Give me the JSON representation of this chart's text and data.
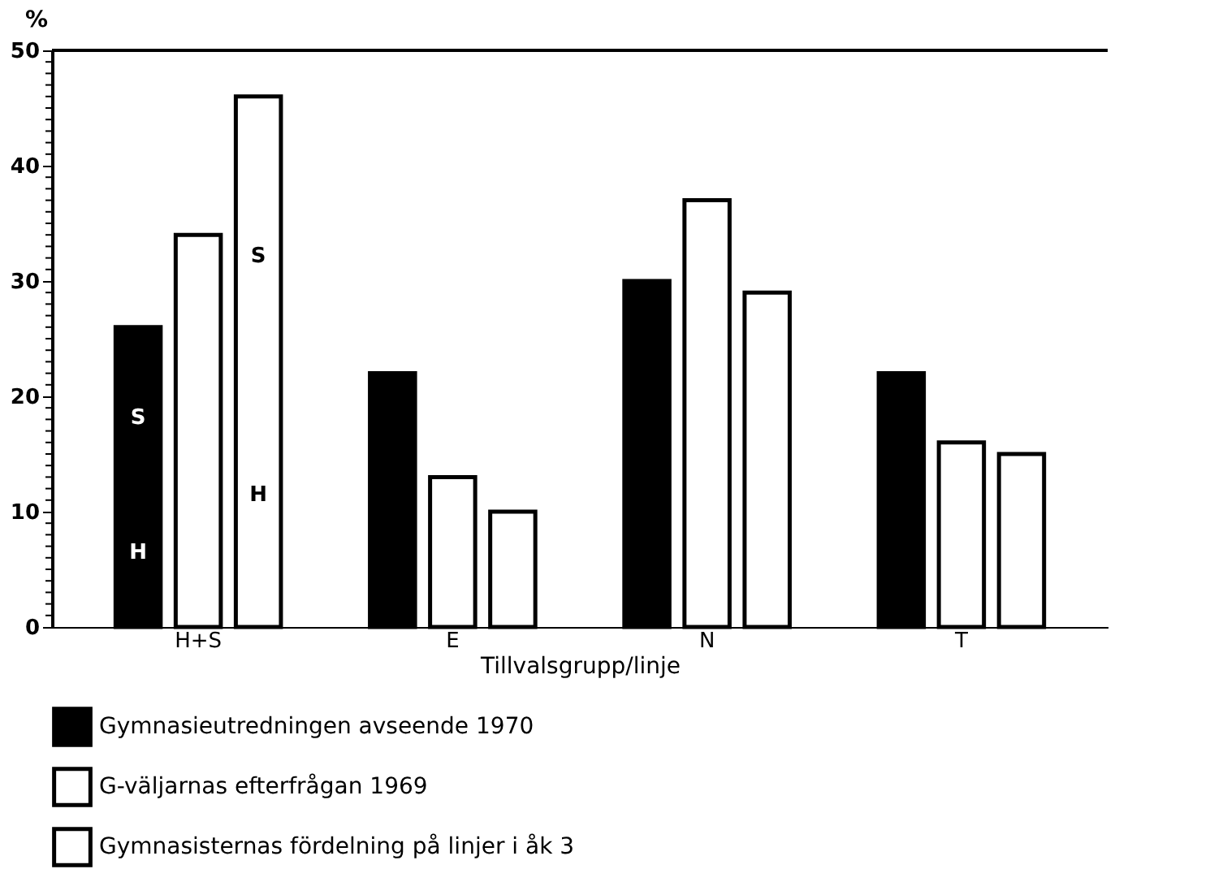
{
  "chart_data": {
    "type": "bar",
    "ylabel": "%",
    "xlabel": "Tillvalsgrupp/linje",
    "categories": [
      "H+S",
      "E",
      "N",
      "T"
    ],
    "series": [
      {
        "name": "Gymnasieutredningen avseende 1970",
        "color": "#000000",
        "values": [
          26,
          22,
          30,
          22
        ]
      },
      {
        "name": "G-väljarnas efterfrågan 1969",
        "color": "#ffffff",
        "values": [
          34,
          13,
          37,
          16
        ]
      },
      {
        "name": "Gymnasisternas fördelning på linjer i åk 3",
        "color": "#ffffff",
        "values": [
          46,
          10,
          29,
          15
        ]
      }
    ],
    "ylim": [
      0,
      50
    ],
    "yticks": [
      0,
      10,
      20,
      30,
      40,
      50,
      {
        "value": 1,
        "label": null
      },
      {
        "value": 2,
        "label": null
      },
      {
        "value": 3,
        "label": null
      },
      {
        "value": 4,
        "label": null
      },
      {
        "value": 5,
        "label": null
      },
      {
        "value": 6,
        "label": null
      },
      {
        "value": 7,
        "label": null
      },
      {
        "value": 8,
        "label": null
      },
      {
        "value": 9,
        "label": null
      },
      {
        "value": 11,
        "label": null
      },
      {
        "value": 12,
        "label": null
      },
      {
        "value": 13,
        "label": null
      },
      {
        "value": 14,
        "label": null
      },
      {
        "value": 15,
        "label": null
      },
      {
        "value": 16,
        "label": null
      },
      {
        "value": 17,
        "label": null
      },
      {
        "value": 18,
        "label": null
      },
      {
        "value": 19,
        "label": null
      },
      {
        "value": 21,
        "label": null
      },
      {
        "value": 22,
        "label": null
      },
      {
        "value": 23,
        "label": null
      },
      {
        "value": 24,
        "label": null
      },
      {
        "value": 25,
        "label": null
      },
      {
        "value": 26,
        "label": null
      },
      {
        "value": 27,
        "label": null
      },
      {
        "value": 28,
        "label": null
      },
      {
        "value": 29,
        "label": null
      },
      {
        "value": 31,
        "label": null
      },
      {
        "value": 32,
        "label": null
      },
      {
        "value": 33,
        "label": null
      },
      {
        "value": 34,
        "label": null
      },
      {
        "value": 35,
        "label": null
      },
      {
        "value": 36,
        "label": null
      },
      {
        "value": 37,
        "label": null
      },
      {
        "value": 38,
        "label": null
      },
      {
        "value": 39,
        "label": null
      },
      {
        "value": 41,
        "label": null
      },
      {
        "value": 42,
        "label": null
      },
      {
        "value": 43,
        "label": null
      },
      {
        "value": 44,
        "label": null
      },
      {
        "value": 45,
        "label": null
      },
      {
        "value": 46,
        "label": null
      },
      {
        "value": 47,
        "label": null
      },
      {
        "value": 48,
        "label": null
      },
      {
        "value": 49,
        "label": null
      }
    ],
    "annotations": [
      "S",
      "H",
      "S",
      "H"
    ],
    "legend": "bottom"
  }
}
